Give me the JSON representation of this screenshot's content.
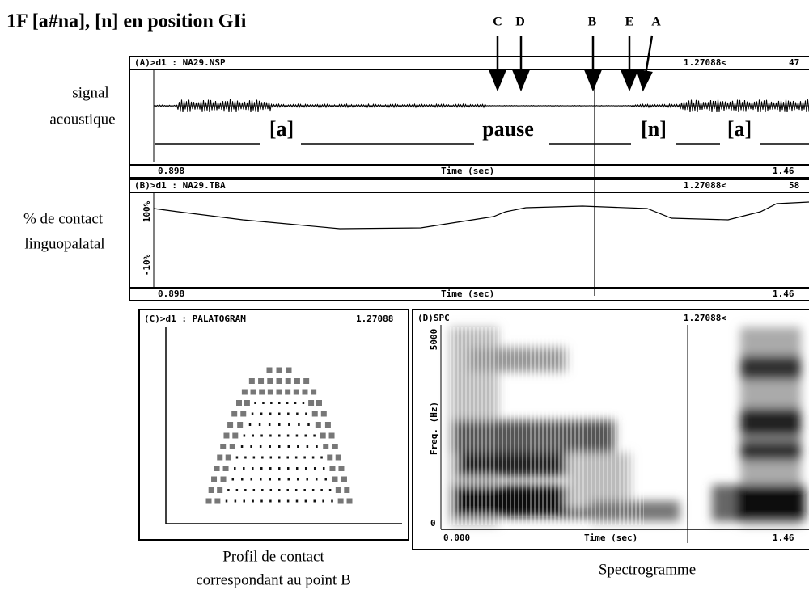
{
  "title": "1F [a#na], [n] en position GIi",
  "markers": [
    "C",
    "D",
    "B",
    "E",
    "A"
  ],
  "panels": [
    {
      "header": "(A)>d1 : NA29.NSP",
      "cursor": "1.27088<",
      "end": "47",
      "x_start": "0.898",
      "x_label": "Time (sec)",
      "x_end": "1.46"
    },
    {
      "header": "(B)>d1 : NA29.TBA",
      "cursor": "1.27088<",
      "end": "58",
      "y_top": "100%",
      "y_bottom": "-10%",
      "x_start": "0.898",
      "x_label": "Time (sec)",
      "x_end": "1.46"
    },
    {
      "header": "(C)>d1 : PALATOGRAM",
      "cursor": "1.27088"
    },
    {
      "header": "(D)SPC",
      "cursor": "1.27088<",
      "y_top": "5000",
      "y_bottom": "0",
      "y_label": "Freq. (Hz)",
      "x_start": "0.000",
      "x_label": "Time (sec)",
      "x_end": "1.46"
    }
  ],
  "segments": [
    "[a]",
    "pause",
    "[n]",
    "[a]"
  ],
  "side_labels": {
    "signal": [
      "signal",
      "acoustique"
    ],
    "contact": [
      "% de contact",
      "linguopalatal"
    ]
  },
  "captions": {
    "palatogram": [
      "Profil de contact",
      "correspondant au point B"
    ],
    "spectrogram": "Spectrogramme"
  }
}
